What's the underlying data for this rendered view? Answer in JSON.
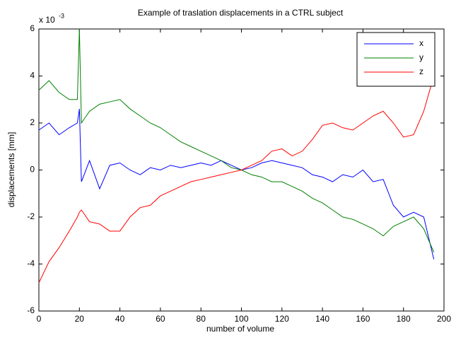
{
  "chart_data": {
    "type": "line",
    "title": "Example of traslation displacements in a CTRL subject",
    "xlabel": "number of volume",
    "ylabel": "displacements [mm]",
    "y_exponent_base": "x 10",
    "y_exponent_power": "-3",
    "x": [
      0,
      5,
      10,
      15,
      19,
      20,
      21,
      25,
      30,
      35,
      40,
      45,
      50,
      55,
      60,
      65,
      70,
      75,
      80,
      85,
      90,
      95,
      100,
      105,
      110,
      115,
      120,
      125,
      130,
      135,
      140,
      145,
      150,
      155,
      160,
      165,
      170,
      175,
      180,
      185,
      190,
      195
    ],
    "series": [
      {
        "name": "x",
        "color": "#0000ff",
        "values": [
          1.7,
          2.0,
          1.5,
          1.8,
          2.0,
          2.6,
          -0.5,
          0.4,
          -0.8,
          0.2,
          0.3,
          0.0,
          -0.2,
          0.1,
          0.0,
          0.2,
          0.1,
          0.2,
          0.3,
          0.2,
          0.4,
          0.2,
          0.0,
          0.1,
          0.3,
          0.4,
          0.3,
          0.2,
          0.1,
          -0.2,
          -0.3,
          -0.5,
          -0.2,
          -0.3,
          0.0,
          -0.5,
          -0.4,
          -1.5,
          -2.0,
          -1.8,
          -2.0,
          -3.8
        ]
      },
      {
        "name": "y",
        "color": "#008000",
        "values": [
          3.4,
          3.8,
          3.3,
          3.0,
          3.0,
          6.0,
          2.0,
          2.5,
          2.8,
          2.9,
          3.0,
          2.6,
          2.3,
          2.0,
          1.8,
          1.5,
          1.2,
          1.0,
          0.8,
          0.6,
          0.4,
          0.1,
          0.0,
          -0.2,
          -0.3,
          -0.5,
          -0.5,
          -0.7,
          -0.9,
          -1.2,
          -1.4,
          -1.7,
          -2.0,
          -2.1,
          -2.3,
          -2.5,
          -2.8,
          -2.4,
          -2.2,
          -2.0,
          -2.5,
          -3.5
        ]
      },
      {
        "name": "z",
        "color": "#ff0000",
        "values": [
          -4.8,
          -3.9,
          -3.3,
          -2.6,
          -2.0,
          -1.8,
          -1.7,
          -2.2,
          -2.3,
          -2.6,
          -2.6,
          -2.0,
          -1.6,
          -1.5,
          -1.1,
          -0.9,
          -0.7,
          -0.5,
          -0.4,
          -0.3,
          -0.2,
          -0.1,
          0.0,
          0.2,
          0.4,
          0.8,
          0.9,
          0.6,
          0.8,
          1.3,
          1.9,
          2.0,
          1.8,
          1.7,
          2.0,
          2.3,
          2.5,
          2.0,
          1.4,
          1.5,
          2.5,
          4.0
        ]
      }
    ],
    "xlim": [
      0,
      200
    ],
    "xticks": [
      0,
      20,
      40,
      60,
      80,
      100,
      120,
      140,
      160,
      180,
      200
    ],
    "ylim": [
      -6,
      6
    ],
    "yticks": [
      -6,
      -4,
      -2,
      0,
      2,
      4,
      6
    ],
    "legend": "northeast"
  }
}
